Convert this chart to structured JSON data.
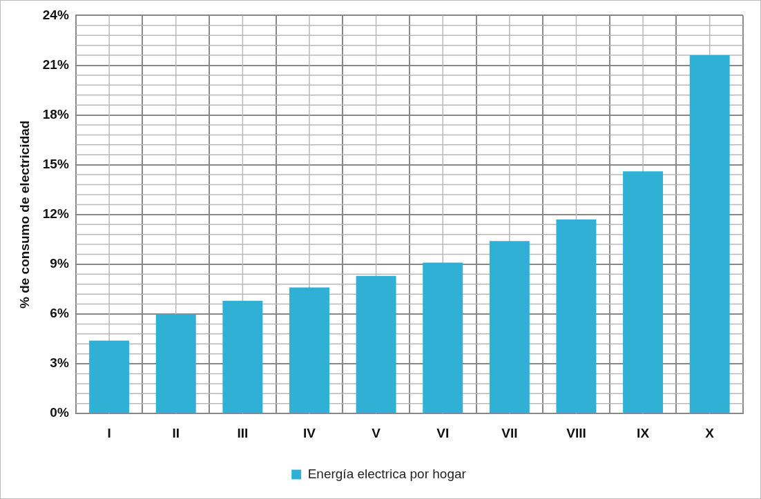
{
  "chart_data": {
    "type": "bar",
    "ylabel": "% de consumo de electricidad",
    "categories": [
      "I",
      "II",
      "III",
      "IV",
      "V",
      "VI",
      "VII",
      "VIII",
      "IX",
      "X"
    ],
    "series": [
      {
        "name": "Energía electrica por hogar",
        "color": "#31b0d5",
        "values": [
          4.4,
          6.0,
          6.8,
          7.6,
          8.3,
          9.1,
          10.4,
          11.7,
          14.6,
          21.6
        ]
      }
    ],
    "ylim": [
      0,
      24
    ],
    "yticks": [
      {
        "value": 0,
        "label": "0%"
      },
      {
        "value": 3,
        "label": "3%"
      },
      {
        "value": 6,
        "label": "6%"
      },
      {
        "value": 9,
        "label": "9%"
      },
      {
        "value": 12,
        "label": "12%"
      },
      {
        "value": 15,
        "label": "15%"
      },
      {
        "value": 18,
        "label": "18%"
      },
      {
        "value": 21,
        "label": "21%"
      },
      {
        "value": 24,
        "label": "24%"
      }
    ],
    "grid": true,
    "legend": "bottom"
  }
}
